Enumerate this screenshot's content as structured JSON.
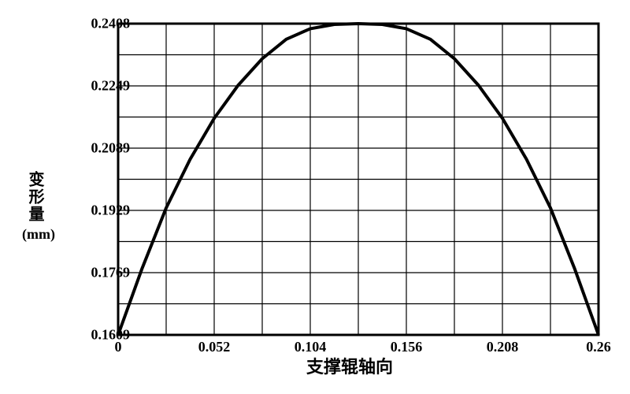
{
  "chart": {
    "type": "line",
    "y_label": "变形量",
    "y_unit": "(mm)",
    "x_label": "支撑辊轴向",
    "title_fontsize": 22,
    "label_fontsize": 20,
    "tick_fontsize": 18,
    "background_color": "#ffffff",
    "grid_color": "#000000",
    "border_color": "#000000",
    "line_color": "#000000",
    "line_width": 4,
    "border_width": 3,
    "grid_width": 1.2,
    "xlim": [
      0,
      0.26
    ],
    "ylim": [
      0.1609,
      0.2408
    ],
    "x_ticks": [
      0,
      0.052,
      0.104,
      0.156,
      0.208,
      0.26
    ],
    "x_tick_labels": [
      "0",
      "0.052",
      "0.104",
      "0.156",
      "0.208",
      "0.26"
    ],
    "y_ticks": [
      0.1609,
      0.1769,
      0.1929,
      0.2089,
      0.2249,
      0.2408
    ],
    "y_tick_labels": [
      "0.1609",
      "0.1769",
      "0.1929",
      "0.2089",
      "0.2249",
      "0.2408"
    ],
    "x_grid_divisions": 10,
    "y_grid_divisions": 10,
    "data": {
      "x": [
        0,
        0.013,
        0.026,
        0.039,
        0.052,
        0.065,
        0.078,
        0.091,
        0.104,
        0.117,
        0.13,
        0.143,
        0.156,
        0.169,
        0.182,
        0.195,
        0.208,
        0.221,
        0.234,
        0.247,
        0.26
      ],
      "y": [
        0.1609,
        0.178,
        0.1935,
        0.206,
        0.2165,
        0.225,
        0.2318,
        0.2368,
        0.2395,
        0.2406,
        0.2408,
        0.2406,
        0.2395,
        0.2368,
        0.2318,
        0.225,
        0.2165,
        0.206,
        0.1935,
        0.178,
        0.1609
      ]
    }
  }
}
